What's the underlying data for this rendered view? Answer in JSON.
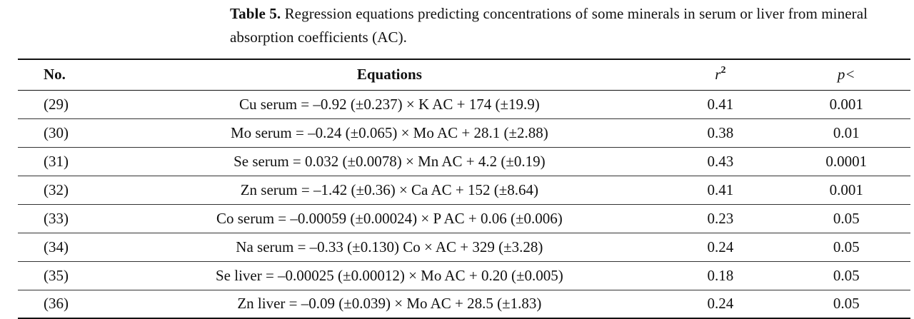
{
  "caption": {
    "label": "Table 5.",
    "text": " Regression equations predicting concentrations of some minerals in serum or liver from mineral absorption coefficients (AC)."
  },
  "table": {
    "headers": {
      "no": "No.",
      "equations": "Equations",
      "r2_base": "r",
      "r2_sup": "2",
      "p": "p<"
    },
    "rows": [
      {
        "no": "(29)",
        "equation": "Cu serum = –0.92 (±0.237) × K AC + 174 (±19.9)",
        "r2": "0.41",
        "p": "0.001"
      },
      {
        "no": "(30)",
        "equation": "Mo serum = –0.24 (±0.065) × Mo AC + 28.1 (±2.88)",
        "r2": "0.38",
        "p": "0.01"
      },
      {
        "no": "(31)",
        "equation": "Se serum = 0.032 (±0.0078) × Mn AC + 4.2 (±0.19)",
        "r2": "0.43",
        "p": "0.0001"
      },
      {
        "no": "(32)",
        "equation": "Zn serum = –1.42 (±0.36) × Ca AC + 152 (±8.64)",
        "r2": "0.41",
        "p": "0.001"
      },
      {
        "no": "(33)",
        "equation": "Co serum = –0.00059 (±0.00024) × P AC + 0.06 (±0.006)",
        "r2": "0.23",
        "p": "0.05"
      },
      {
        "no": "(34)",
        "equation": "Na serum = –0.33 (±0.130) Co × AC + 329 (±3.28)",
        "r2": "0.24",
        "p": "0.05"
      },
      {
        "no": "(35)",
        "equation": "Se liver = –0.00025 (±0.00012) × Mo AC + 0.20 (±0.005)",
        "r2": "0.18",
        "p": "0.05"
      },
      {
        "no": "(36)",
        "equation": "Zn liver = –0.09 (±0.039) × Mo AC + 28.5 (±1.83)",
        "r2": "0.24",
        "p": "0.05"
      }
    ]
  }
}
